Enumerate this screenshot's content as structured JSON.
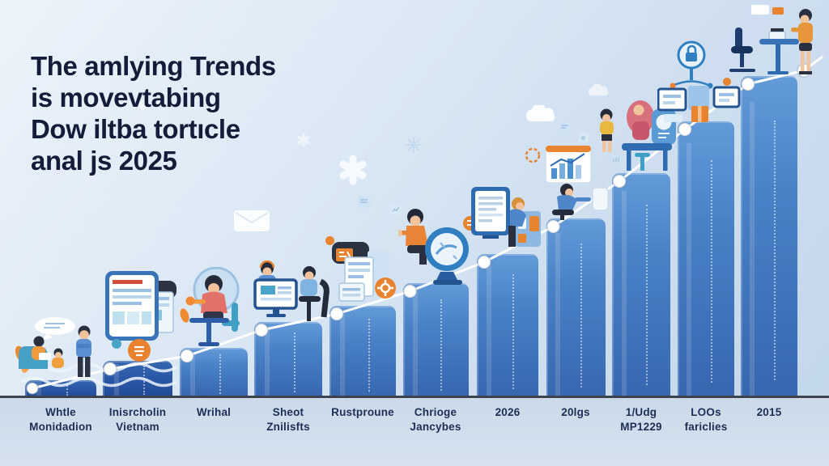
{
  "title": {
    "lines": [
      "The amlying Trends",
      "is movevtabing",
      "Dow iltba tortıcle",
      "anal js 2025"
    ]
  },
  "chart_data": {
    "type": "bar",
    "title": "The amlying Trends is movevtabing Dow iltba tortıcle anal js 2025",
    "categories": [
      "Whtle Monidadion",
      "Inisrcholin Vietnam",
      "Wrihal",
      "Sheot Znilisfts",
      "Rustproune",
      "Chrioge Jancybes",
      "2026",
      "20lgs",
      "1/Udg MP1229",
      "LOOs fariclies",
      "2015"
    ],
    "values": [
      5,
      11,
      15,
      23,
      28,
      35,
      44,
      55,
      69,
      85,
      99
    ],
    "ylim": [
      0,
      100
    ],
    "xlabel": "",
    "ylabel": "",
    "grid": false,
    "legend": "none",
    "overlay_line": {
      "type": "line",
      "description": "white trend line with round white markers following bar tops",
      "marker": "circle",
      "color": "#ffffff"
    }
  },
  "labels": [
    {
      "l1": "Whtle",
      "l2": "Monidadion"
    },
    {
      "l1": "Inisrcholin",
      "l2": "Vietnam"
    },
    {
      "l1": "Wrihal",
      "l2": ""
    },
    {
      "l1": "Sheot",
      "l2": "Znilisfts"
    },
    {
      "l1": "Rustproune",
      "l2": ""
    },
    {
      "l1": "Chrioge",
      "l2": "Jancybes"
    },
    {
      "l1": "2026",
      "l2": ""
    },
    {
      "l1": "20lgs",
      "l2": ""
    },
    {
      "l1": "1/Udg",
      "l2": "MP1229"
    },
    {
      "l1": "LOOs",
      "l2": "fariclies"
    },
    {
      "l1": "2015",
      "l2": ""
    }
  ],
  "colors": {
    "background_top": "#ecf3fa",
    "background_bottom": "#c2d6ea",
    "bar_top": "#639ad8",
    "bar_bottom": "#3767af",
    "bar_dark": "#2a57a6",
    "trend_line": "#ffffff",
    "ground_line": "#3c424e",
    "floor": "#cbd9e9",
    "title_text": "#131c38",
    "label_text": "#1c2f55",
    "accent_orange": "#e8832f",
    "accent_teal": "#3f9fc4",
    "accent_coral": "#e2716a"
  },
  "decorations": [
    "speech-bubble-icon",
    "envelope-icon",
    "asterisk-icon",
    "snowflake-icon",
    "cloud-icon",
    "tablet-document-icon",
    "people-meeting",
    "woman-at-table",
    "team-monitor",
    "documents-stack",
    "magnifier-clock-icon",
    "monitor-document",
    "bar-chart-card-icon",
    "family-desk",
    "lock-network-icon",
    "workstation-monitors",
    "standing-desk-person"
  ]
}
